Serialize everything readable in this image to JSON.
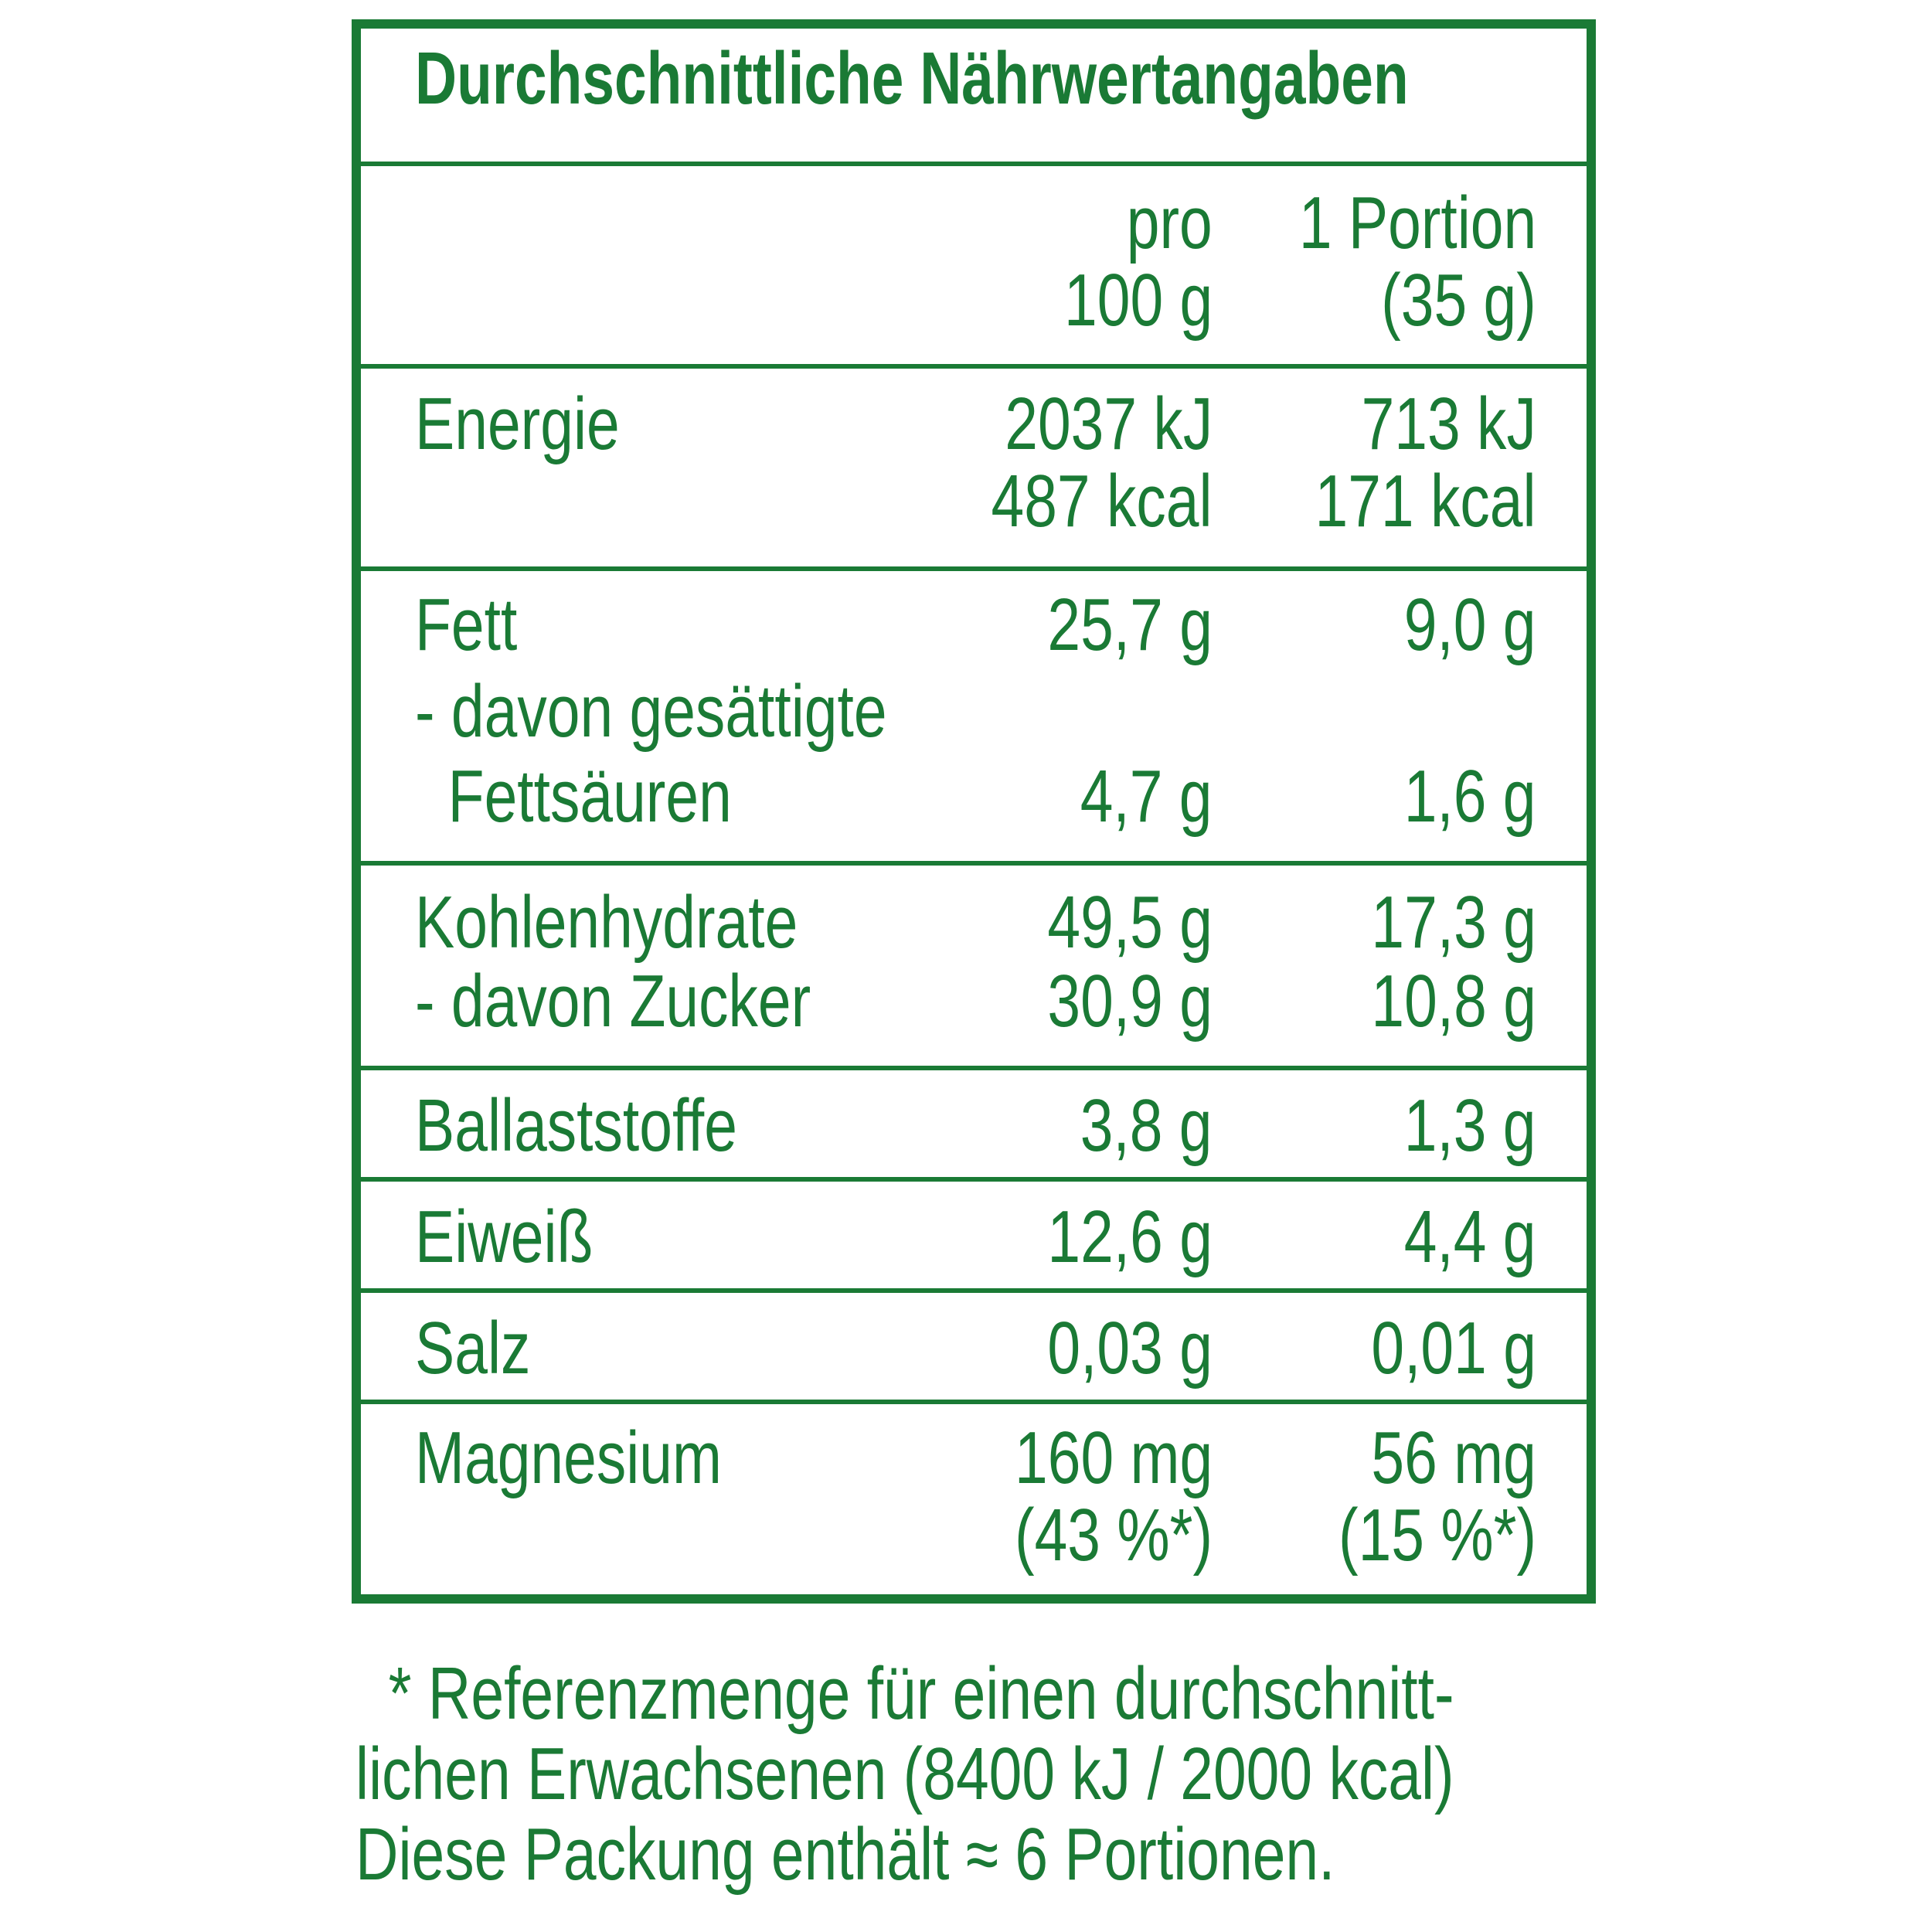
{
  "title": "Durchschnittliche Nährwertangaben",
  "header": {
    "col_100_line1": "pro",
    "col_100_line2": "100 g",
    "col_portion_line1": "1 Portion",
    "col_portion_line2": "(35 g)"
  },
  "rows": {
    "energie": {
      "label": "Energie",
      "v100_line1": "2037 kJ",
      "v100_line2": "487 kcal",
      "vpor_line1": "713 kJ",
      "vpor_line2": "171 kcal"
    },
    "fett": {
      "label": "Fett",
      "v100": "25,7 g",
      "vpor": "9,0 g"
    },
    "gesaettigte": {
      "label_line1": "- davon gesättigte",
      "label_line2": "  Fettsäuren",
      "v100": "4,7 g",
      "vpor": "1,6 g"
    },
    "kohlenhydrate": {
      "label": "Kohlenhydrate",
      "v100": "49,5 g",
      "vpor": "17,3 g"
    },
    "zucker": {
      "label": "- davon Zucker",
      "v100": "30,9 g",
      "vpor": "10,8 g"
    },
    "ballaststoffe": {
      "label": "Ballaststoffe",
      "v100": "3,8 g",
      "vpor": "1,3 g"
    },
    "eiweiss": {
      "label": "Eiweiß",
      "v100": "12,6 g",
      "vpor": "4,4 g"
    },
    "salz": {
      "label": "Salz",
      "v100": "0,03 g",
      "vpor": "0,01 g"
    },
    "magnesium": {
      "label": "Magnesium",
      "v100_line1": "160 mg",
      "v100_line2": "(43 %*)",
      "vpor_line1": "56 mg",
      "vpor_line2": "(15 %*)"
    }
  },
  "footnote": {
    "line1": "  * Referenzmenge für einen durchschnitt-",
    "line2": "lichen Erwachsenen (8400 kJ / 2000 kcal)",
    "line3": "Diese Packung enthält ≈ 6 Portionen."
  },
  "colors": {
    "green": "#1a7a35",
    "background": "#ffffff"
  }
}
